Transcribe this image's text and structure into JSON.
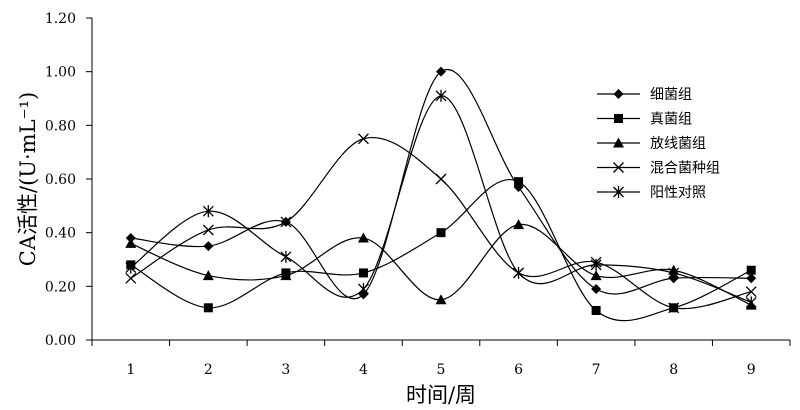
{
  "chart_data": {
    "type": "line",
    "xlabel": "时间/周",
    "ylabel": "CA活性/(U·mL⁻¹)",
    "x": [
      1,
      2,
      3,
      4,
      5,
      6,
      7,
      8,
      9
    ],
    "ylim": [
      0,
      1.2
    ],
    "yticks": [
      "0.00",
      "0.20",
      "0.40",
      "0.60",
      "0.80",
      "1.00",
      "1.20"
    ],
    "grid": false,
    "legend_position": "right",
    "line_color": "#000000",
    "series": [
      {
        "name": "细菌组",
        "marker": "diamond",
        "values": [
          0.38,
          0.35,
          0.44,
          0.17,
          1.0,
          0.57,
          0.19,
          0.23,
          0.23
        ]
      },
      {
        "name": "真菌组",
        "marker": "square",
        "values": [
          0.28,
          0.12,
          0.25,
          0.25,
          0.4,
          0.59,
          0.11,
          0.12,
          0.26
        ]
      },
      {
        "name": "放线菌组",
        "marker": "triangle",
        "values": [
          0.36,
          0.24,
          0.24,
          0.38,
          0.15,
          0.43,
          0.24,
          0.26,
          0.13
        ]
      },
      {
        "name": "混合菌种组",
        "marker": "x",
        "values": [
          0.23,
          0.41,
          0.44,
          0.75,
          0.6,
          0.25,
          0.29,
          0.12,
          0.18
        ]
      },
      {
        "name": "阳性对照",
        "marker": "star",
        "values": [
          0.27,
          0.48,
          0.31,
          0.19,
          0.91,
          0.25,
          0.28,
          0.25,
          0.14
        ]
      }
    ]
  }
}
